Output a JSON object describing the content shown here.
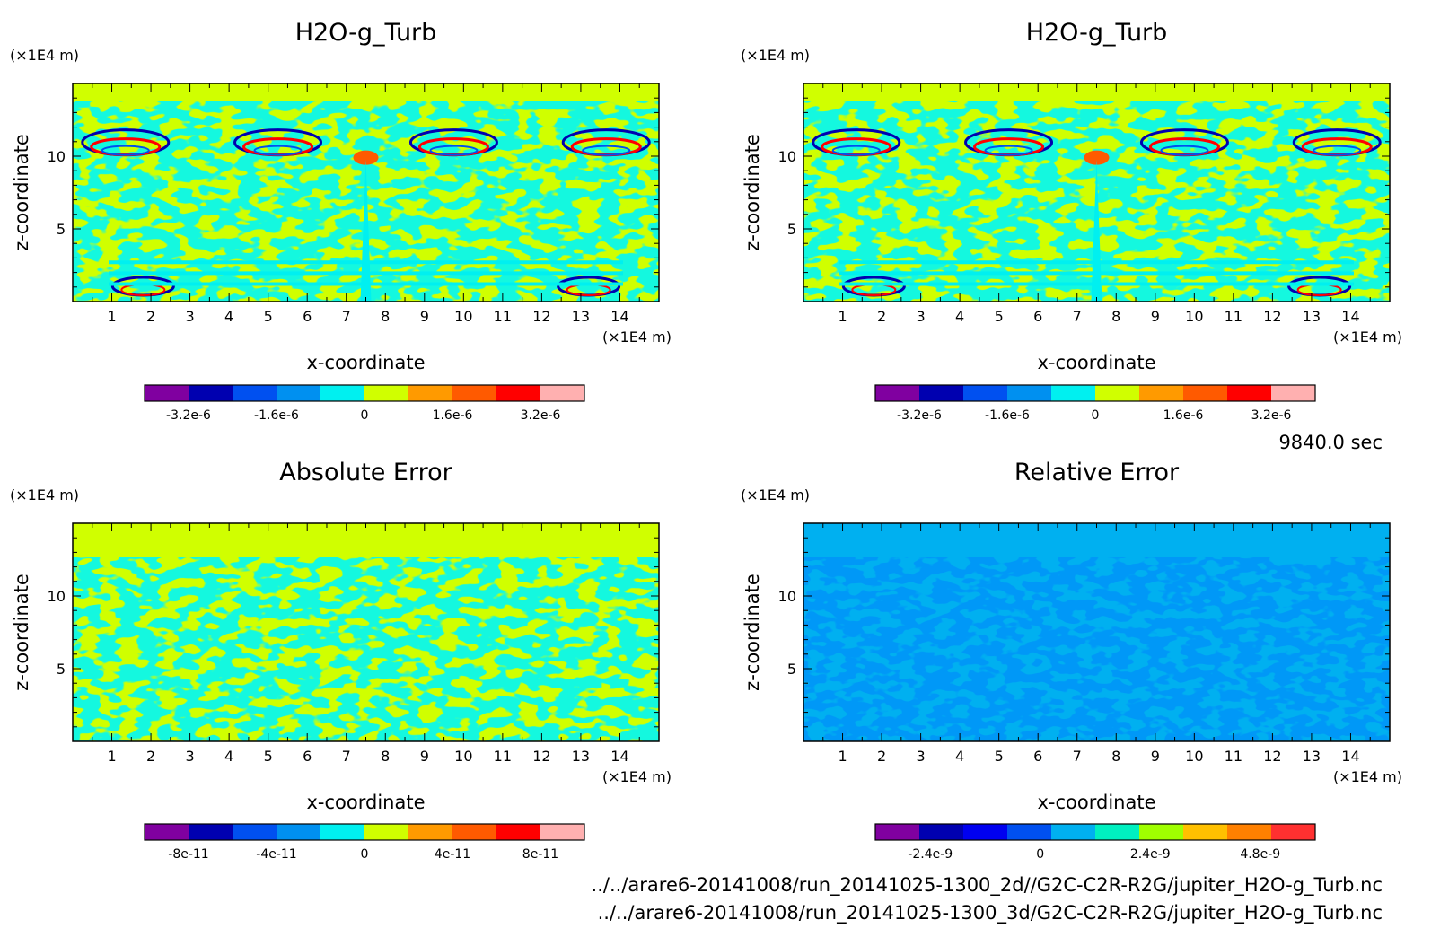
{
  "footer": {
    "time": "9840.0 sec",
    "file_2d": "../../arare6-20141008/run_20141025-1300_2d//G2C-C2R-R2G/jupiter_H2O-g_Turb.nc",
    "file_3d": "../../arare6-20141008/run_20141025-1300_3d/G2C-C2R-R2G/jupiter_H2O-g_Turb.nc"
  },
  "chart_data": [
    {
      "type": "heatmap",
      "title": "H2O-g_Turb",
      "xlabel": "x-coordinate",
      "ylabel": "z-coordinate",
      "x_unit": "(×1E4 m)",
      "y_unit": "(×1E4 m)",
      "x_ticks": [
        "1",
        "2",
        "3",
        "4",
        "5",
        "6",
        "7",
        "8",
        "9",
        "10",
        "11",
        "12",
        "13",
        "14"
      ],
      "y_ticks": [
        "5",
        "10"
      ],
      "xlim": [
        0,
        15
      ],
      "ylim": [
        0,
        15
      ],
      "colorbar": {
        "levels": 10,
        "colors": [
          "#8000a0",
          "#0000b0",
          "#0050f0",
          "#0090f0",
          "#00f0f0",
          "#d0ff00",
          "#ff9a00",
          "#ff5a00",
          "#ff0000",
          "#ffb0b0"
        ],
        "tick_labels": [
          "-3.2e-6",
          "-1.6e-6",
          "0",
          "1.6e-6",
          "3.2e-6"
        ],
        "range": [
          -4e-06,
          4e-06
        ]
      }
    },
    {
      "type": "heatmap",
      "title": "H2O-g_Turb",
      "xlabel": "x-coordinate",
      "ylabel": "z-coordinate",
      "x_unit": "(×1E4 m)",
      "y_unit": "(×1E4 m)",
      "x_ticks": [
        "1",
        "2",
        "3",
        "4",
        "5",
        "6",
        "7",
        "8",
        "9",
        "10",
        "11",
        "12",
        "13",
        "14"
      ],
      "y_ticks": [
        "5",
        "10"
      ],
      "xlim": [
        0,
        15
      ],
      "ylim": [
        0,
        15
      ],
      "colorbar": {
        "levels": 10,
        "colors": [
          "#8000a0",
          "#0000b0",
          "#0050f0",
          "#0090f0",
          "#00f0f0",
          "#d0ff00",
          "#ff9a00",
          "#ff5a00",
          "#ff0000",
          "#ffb0b0"
        ],
        "tick_labels": [
          "-3.2e-6",
          "-1.6e-6",
          "0",
          "1.6e-6",
          "3.2e-6"
        ],
        "range": [
          -4e-06,
          4e-06
        ]
      }
    },
    {
      "type": "heatmap",
      "title": "Absolute Error",
      "xlabel": "x-coordinate",
      "ylabel": "z-coordinate",
      "x_unit": "(×1E4 m)",
      "y_unit": "(×1E4 m)",
      "x_ticks": [
        "1",
        "2",
        "3",
        "4",
        "5",
        "6",
        "7",
        "8",
        "9",
        "10",
        "11",
        "12",
        "13",
        "14"
      ],
      "y_ticks": [
        "5",
        "10"
      ],
      "xlim": [
        0,
        15
      ],
      "ylim": [
        0,
        15
      ],
      "colorbar": {
        "levels": 10,
        "colors": [
          "#8000a0",
          "#0000b0",
          "#0050f0",
          "#0090f0",
          "#00f0f0",
          "#d0ff00",
          "#ff9a00",
          "#ff5a00",
          "#ff0000",
          "#ffb0b0"
        ],
        "tick_labels": [
          "-8e-11",
          "-4e-11",
          "0",
          "4e-11",
          "8e-11"
        ],
        "range": [
          -1e-10,
          1e-10
        ]
      }
    },
    {
      "type": "heatmap",
      "title": "Relative Error",
      "xlabel": "x-coordinate",
      "ylabel": "z-coordinate",
      "x_unit": "(×1E4 m)",
      "y_unit": "(×1E4 m)",
      "x_ticks": [
        "1",
        "2",
        "3",
        "4",
        "5",
        "6",
        "7",
        "8",
        "9",
        "10",
        "11",
        "12",
        "13",
        "14"
      ],
      "y_ticks": [
        "5",
        "10"
      ],
      "xlim": [
        0,
        15
      ],
      "ylim": [
        0,
        15
      ],
      "colorbar": {
        "levels": 10,
        "colors": [
          "#8000a0",
          "#0000b0",
          "#0000f0",
          "#0050f0",
          "#00b0f0",
          "#00f0c0",
          "#a0ff00",
          "#ffc000",
          "#ff8000",
          "#ff3030"
        ],
        "tick_labels": [
          "-2.4e-9",
          "0",
          "2.4e-9",
          "4.8e-9"
        ],
        "range": [
          -3.6e-09,
          6e-09
        ]
      }
    }
  ]
}
